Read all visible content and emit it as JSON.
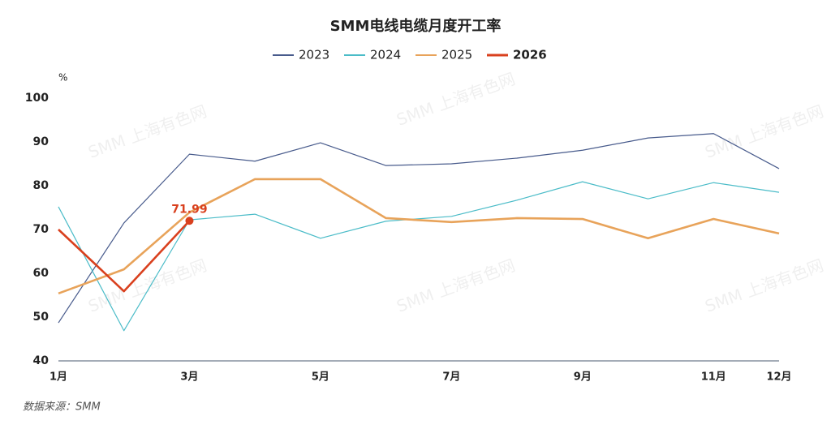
{
  "chart_data": {
    "type": "line",
    "title": "SMM电线电缆月度开工率",
    "y_unit": "%",
    "source": "数据来源：SMM",
    "watermark": "SMM 上海有色网",
    "categories": [
      "1月",
      null,
      "3月",
      null,
      "5月",
      null,
      "7月",
      null,
      "9月",
      null,
      "11月",
      "12月"
    ],
    "series": [
      {
        "name": "2023",
        "color": "#485b8c",
        "values": [
          48.7,
          71.5,
          87.2,
          85.6,
          89.8,
          84.6,
          85.0,
          86.3,
          88.1,
          90.9,
          91.9,
          83.9
        ]
      },
      {
        "name": "2024",
        "color": "#4bbcc8",
        "values": [
          75.2,
          46.9,
          72.2,
          73.5,
          68.0,
          71.9,
          73.0,
          76.7,
          80.9,
          77.0,
          80.7,
          78.5
        ]
      },
      {
        "name": "2025",
        "color": "#e8a35a",
        "values": [
          55.4,
          60.9,
          73.9,
          81.5,
          81.5,
          72.6,
          71.7,
          72.6,
          72.4,
          68.0,
          72.4,
          69.1
        ]
      },
      {
        "name": "2026",
        "color": "#d9401e",
        "values": [
          70.0,
          55.9,
          71.99,
          null,
          null,
          null,
          null,
          null,
          null,
          null,
          null,
          null
        ]
      }
    ],
    "ylim": [
      40,
      100
    ],
    "yticks": [
      40,
      50,
      60,
      70,
      80,
      90,
      100
    ],
    "grid": false
  }
}
